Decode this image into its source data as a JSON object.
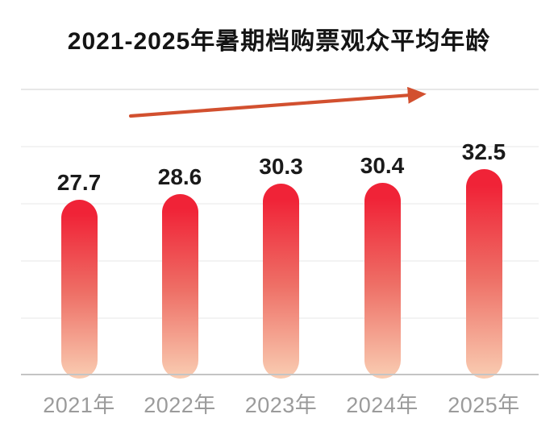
{
  "title": "2021-2025年暑期档购票观众平均年龄",
  "chart_data": {
    "type": "bar",
    "title": "2021-2025年暑期档购票观众平均年龄",
    "categories": [
      "2021年",
      "2022年",
      "2023年",
      "2024年",
      "2025年"
    ],
    "values": [
      27.7,
      28.6,
      30.3,
      30.4,
      32.5
    ],
    "value_labels": [
      "27.7",
      "28.6",
      "30.3",
      "30.4",
      "32.5"
    ],
    "xlabel": "",
    "ylabel": "",
    "ylim": [
      0,
      35
    ],
    "grid": "faint horizontal gridlines, no y-axis tick labels",
    "legend": "none",
    "bar_style": "capsule bars with red-to-peach vertical gradient",
    "annotations": [
      {
        "type": "trend-arrow",
        "description": "red-orange straight arrow rising left-to-right above the bars, from above the 2021 bar toward above the 2024/2025 bars"
      }
    ]
  },
  "colors": {
    "bar_top": "#f02337",
    "bar_mid": "#ee6f66",
    "bar_bottom": "#f9cdb2",
    "arrow": "#d2502f",
    "axis_line": "#c4c4c4",
    "gridline": "#f3f3f3",
    "gridline_strong": "#e7e7e7",
    "title_text": "#141414",
    "value_text": "#1a1a1a",
    "year_text": "#9b9b9b",
    "background": "#ffffff"
  }
}
